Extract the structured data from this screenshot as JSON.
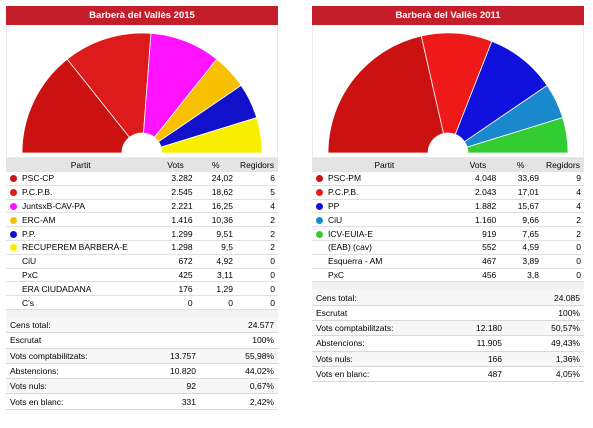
{
  "headers": {
    "party": "Partit",
    "votes": "Vots",
    "pct": "%",
    "seats": "Regidors"
  },
  "chart_data": [
    {
      "type": "pie",
      "title": "Barberà del Vallès 2015",
      "series": [
        {
          "name": "PSC-CP",
          "votes": "3.282",
          "pct": "24,02",
          "seats": 6,
          "color": "#cc1111"
        },
        {
          "name": "P.C.P.B.",
          "votes": "2.545",
          "pct": "18,62",
          "seats": 5,
          "color": "#dd1b1b"
        },
        {
          "name": "JuntsxB-CAV-PA",
          "votes": "2.221",
          "pct": "16,25",
          "seats": 4,
          "color": "#ff12ff"
        },
        {
          "name": "ERC-AM",
          "votes": "1.416",
          "pct": "10,36",
          "seats": 2,
          "color": "#f7c000"
        },
        {
          "name": "P.P.",
          "votes": "1.299",
          "pct": "9,51",
          "seats": 2,
          "color": "#1111cc"
        },
        {
          "name": "RECUPEREM BARBERÀ-E",
          "votes": "1.298",
          "pct": "9,5",
          "seats": 2,
          "color": "#f7ee00"
        },
        {
          "name": "CiU",
          "votes": "672",
          "pct": "4,92",
          "seats": 0,
          "color": null
        },
        {
          "name": "PxC",
          "votes": "425",
          "pct": "3,11",
          "seats": 0,
          "color": null
        },
        {
          "name": "ERA CIUDADANA",
          "votes": "176",
          "pct": "1,29",
          "seats": 0,
          "color": null
        },
        {
          "name": "C's",
          "votes": "0",
          "pct": "0",
          "seats": 0,
          "color": null
        }
      ],
      "totals": [
        {
          "label": "Cens total:",
          "value": "",
          "pct": "24.577"
        },
        {
          "label": "Escrutat",
          "value": "",
          "pct": "100%"
        },
        {
          "label": "Vots comptabilitzats:",
          "value": "13.757",
          "pct": "55,98%"
        },
        {
          "label": "Abstencions:",
          "value": "10.820",
          "pct": "44,02%"
        },
        {
          "label": "Vots nuls:",
          "value": "92",
          "pct": "0,67%"
        },
        {
          "label": "Vots en blanc:",
          "value": "331",
          "pct": "2,42%"
        }
      ]
    },
    {
      "type": "pie",
      "title": "Barberà del Vallès 2011",
      "series": [
        {
          "name": "PSC-PM",
          "votes": "4.048",
          "pct": "33,69",
          "seats": 9,
          "color": "#cc1111"
        },
        {
          "name": "P.C.P.B.",
          "votes": "2.043",
          "pct": "17,01",
          "seats": 4,
          "color": "#ee1a1a"
        },
        {
          "name": "PP",
          "votes": "1.882",
          "pct": "15,67",
          "seats": 4,
          "color": "#1111dd"
        },
        {
          "name": "CiU",
          "votes": "1.160",
          "pct": "9,66",
          "seats": 2,
          "color": "#1a88cc"
        },
        {
          "name": "ICV-EUIA-E",
          "votes": "919",
          "pct": "7,65",
          "seats": 2,
          "color": "#33cc33"
        },
        {
          "name": "(EAB) (cav)",
          "votes": "552",
          "pct": "4,59",
          "seats": 0,
          "color": null
        },
        {
          "name": "Esquerra - AM",
          "votes": "467",
          "pct": "3,89",
          "seats": 0,
          "color": null
        },
        {
          "name": "PxC",
          "votes": "456",
          "pct": "3,8",
          "seats": 0,
          "color": null
        }
      ],
      "totals": [
        {
          "label": "Cens total:",
          "value": "",
          "pct": "24.085"
        },
        {
          "label": "Escrutat",
          "value": "",
          "pct": "100%"
        },
        {
          "label": "Vots comptabilitzats:",
          "value": "12.180",
          "pct": "50,57%"
        },
        {
          "label": "Abstencions:",
          "value": "11.905",
          "pct": "49,43%"
        },
        {
          "label": "Vots nuls:",
          "value": "166",
          "pct": "1,36%"
        },
        {
          "label": "Vots en blanc:",
          "value": "487",
          "pct": "4,05%"
        }
      ]
    }
  ]
}
